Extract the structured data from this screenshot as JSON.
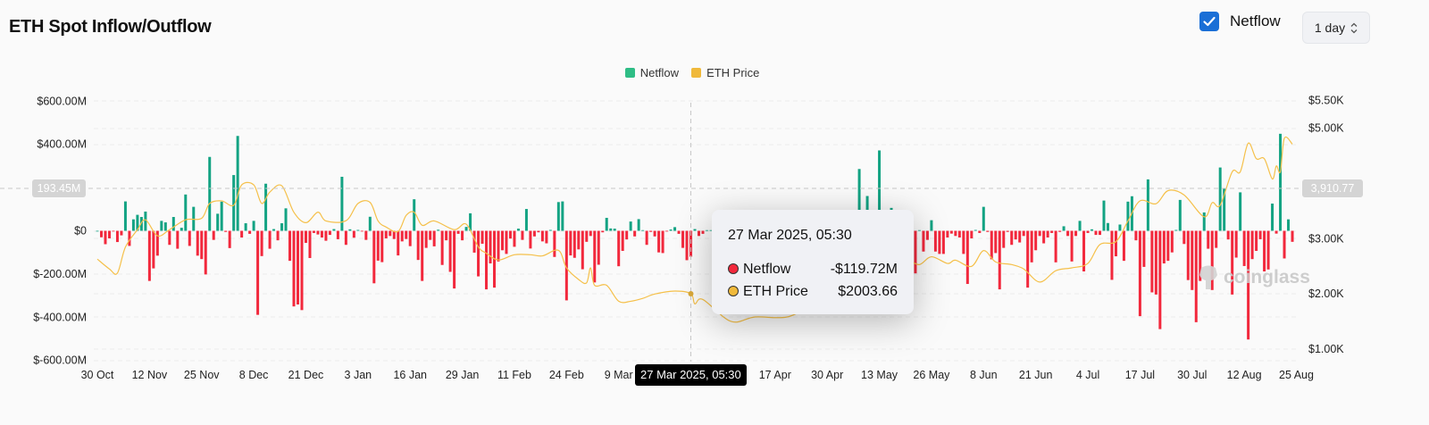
{
  "header": {
    "title": "ETH Spot Inflow/Outflow",
    "netflow_toggle_label": "Netflow",
    "netflow_toggle_checked": true,
    "interval_select": "1 day"
  },
  "colors": {
    "inflow": "#13a383",
    "outflow": "#f2283c",
    "price": "#f5c04a",
    "legend_netflow": "#2ebd85",
    "legend_price": "#f0b93a",
    "checkbox": "#1a6fd6"
  },
  "tooltip": {
    "date": "27 Mar 2025, 05:30",
    "rows": [
      {
        "label": "Netflow",
        "value": "-$119.72M",
        "dot": "#f2283c"
      },
      {
        "label": "ETH Price",
        "value": "$2003.66",
        "dot": "#f0b93a"
      }
    ]
  },
  "crosshair": {
    "x_label": "27 Mar 2025, 05:30",
    "left_label": "193.45M",
    "right_label": "3,910.77"
  },
  "watermark": "coinglass",
  "chart_data": {
    "type": "bar+line",
    "legend": [
      {
        "name": "Netflow"
      },
      {
        "name": "ETH Price"
      }
    ],
    "legend_position": "top-center",
    "grid": true,
    "x_ticks": [
      "30 Oct",
      "12 Nov",
      "25 Nov",
      "8 Dec",
      "21 Dec",
      "3 Jan",
      "16 Jan",
      "29 Jan",
      "11 Feb",
      "24 Feb",
      "9 Mar",
      "17 Apr",
      "30 Apr",
      "13 May",
      "26 May",
      "8 Jun",
      "21 Jun",
      "4 Jul",
      "17 Jul",
      "30 Jul",
      "12 Aug",
      "25 Aug"
    ],
    "x_tick_dates": [
      "2024-10-30",
      "2024-11-12",
      "2024-11-25",
      "2024-12-08",
      "2024-12-21",
      "2025-01-03",
      "2025-01-16",
      "2025-01-29",
      "2025-02-11",
      "2025-02-24",
      "2025-03-09",
      "2025-04-17",
      "2025-04-30",
      "2025-05-13",
      "2025-05-26",
      "2025-06-08",
      "2025-06-21",
      "2025-07-04",
      "2025-07-17",
      "2025-07-30",
      "2025-08-12",
      "2025-08-25"
    ],
    "y_left": {
      "ticks": [
        "$600.00M",
        "$400.00M",
        "$0",
        "$-200.00M",
        "$-400.00M",
        "$-600.00M"
      ],
      "tick_values": [
        600,
        400,
        0,
        -200,
        -400,
        -600
      ],
      "range": [
        -600,
        600
      ],
      "unit": "M USD"
    },
    "y_right": {
      "ticks": [
        "$5.50K",
        "$5.00K",
        "$3.00K",
        "$2.00K",
        "$1.00K"
      ],
      "tick_values": [
        5500,
        5000,
        3000,
        2000,
        1000
      ],
      "unit": "USD"
    },
    "netflow": {
      "name": "Netflow",
      "start": "2024-10-30",
      "interval": "1 day",
      "values": [
        0,
        -30,
        -62,
        -35,
        -3,
        -52,
        -21,
        136,
        -70,
        53,
        74,
        64,
        89,
        -232,
        -174,
        -115,
        46,
        39,
        -65,
        64,
        -83,
        14,
        168,
        -70,
        111,
        -115,
        -131,
        -202,
        342,
        -42,
        79,
        135,
        -5,
        -80,
        258,
        439,
        -31,
        35,
        -14,
        46,
        -389,
        -117,
        218,
        -83,
        8,
        -44,
        35,
        104,
        -139,
        -350,
        -341,
        -367,
        -56,
        -126,
        -10,
        -17,
        -31,
        -46,
        -19,
        8,
        -39,
        250,
        -65,
        7,
        -32,
        4,
        -3,
        -42,
        65,
        -243,
        -138,
        -145,
        -35,
        -24,
        -38,
        -114,
        -49,
        -38,
        -71,
        146,
        -135,
        -232,
        -79,
        -42,
        -72,
        5,
        -158,
        -44,
        -190,
        -267,
        -14,
        -44,
        18,
        81,
        -101,
        -211,
        -60,
        -271,
        -151,
        -263,
        -142,
        -90,
        -107,
        -36,
        -74,
        10,
        -42,
        101,
        -82,
        -26,
        -7,
        -49,
        -58,
        4,
        -121,
        133,
        136,
        -322,
        -114,
        -125,
        -86,
        -178,
        -51,
        -24,
        -239,
        -157,
        -7,
        60,
        11,
        10,
        -164,
        -93,
        -40,
        43,
        -26,
        54,
        3,
        -65,
        -5,
        -26,
        -100,
        -103,
        -3,
        6,
        17,
        -14,
        -79,
        -136,
        -119.72,
        8,
        -24,
        -14,
        3,
        3,
        -45,
        -80,
        -20,
        5,
        -60,
        -35,
        -110,
        -25,
        10,
        -50,
        -70,
        -15,
        30,
        -40,
        -90,
        -20,
        -55,
        15,
        -30,
        -65,
        -10,
        20,
        -45,
        -25,
        -85,
        -15,
        8,
        -35,
        -60,
        25,
        -20,
        -40,
        12,
        -30,
        -18,
        -50,
        286,
        -40,
        161,
        45,
        -30,
        372,
        -60,
        20,
        106,
        -25,
        15,
        -40,
        5,
        3,
        -197,
        3,
        -96,
        -42,
        49,
        -96,
        -107,
        -107,
        -31,
        -13,
        -24,
        -31,
        -107,
        -246,
        -35,
        4,
        -10,
        111,
        -5,
        -132,
        -103,
        -271,
        -79,
        -5,
        -65,
        -40,
        -54,
        -24,
        -263,
        -146,
        -90,
        -24,
        -58,
        -31,
        -10,
        -146,
        -5,
        21,
        -24,
        -142,
        -24,
        46,
        -188,
        -10,
        7,
        -19,
        -19,
        140,
        36,
        -227,
        -118,
        29,
        -139,
        135,
        160,
        -44,
        -395,
        -167,
        238,
        -285,
        -295,
        -455,
        -151,
        -139,
        -100,
        4,
        143,
        -61,
        -228,
        -274,
        -423,
        -232,
        85,
        -83,
        -274,
        -79,
        293,
        195,
        -40,
        -295,
        -124,
        178,
        -163,
        -503,
        -131,
        -93,
        -39,
        -188,
        -179,
        126,
        -13,
        449,
        -128,
        53,
        -51
      ]
    },
    "price": {
      "name": "ETH Price",
      "points": [
        [
          "2024-10-30",
          2630
        ],
        [
          "2024-11-02",
          2452
        ],
        [
          "2024-11-04",
          2377
        ],
        [
          "2024-11-06",
          2847
        ],
        [
          "2024-11-09",
          3163
        ],
        [
          "2024-11-11",
          3341
        ],
        [
          "2024-11-14",
          3052
        ],
        [
          "2024-11-17",
          3163
        ],
        [
          "2024-11-21",
          3341
        ],
        [
          "2024-11-25",
          3368
        ],
        [
          "2024-11-27",
          3637
        ],
        [
          "2024-11-30",
          3684
        ],
        [
          "2024-12-03",
          3605
        ],
        [
          "2024-12-05",
          3973
        ],
        [
          "2024-12-08",
          3973
        ],
        [
          "2024-12-10",
          3637
        ],
        [
          "2024-12-12",
          3842
        ],
        [
          "2024-12-15",
          3957
        ],
        [
          "2024-12-18",
          3479
        ],
        [
          "2024-12-21",
          3289
        ],
        [
          "2024-12-24",
          3479
        ],
        [
          "2024-12-26",
          3321
        ],
        [
          "2024-12-31",
          3325
        ],
        [
          "2025-01-03",
          3637
        ],
        [
          "2025-01-06",
          3657
        ],
        [
          "2025-01-08",
          3321
        ],
        [
          "2025-01-10",
          3210
        ],
        [
          "2025-01-13",
          3131
        ],
        [
          "2025-01-15",
          3420
        ],
        [
          "2025-01-17",
          3479
        ],
        [
          "2025-01-19",
          3242
        ],
        [
          "2025-01-22",
          3321
        ],
        [
          "2025-01-27",
          3163
        ],
        [
          "2025-01-30",
          3262
        ],
        [
          "2025-02-02",
          2851
        ],
        [
          "2025-02-04",
          2736
        ],
        [
          "2025-02-07",
          2614
        ],
        [
          "2025-02-11",
          2709
        ],
        [
          "2025-02-15",
          2709
        ],
        [
          "2025-02-18",
          2689
        ],
        [
          "2025-02-22",
          2788
        ],
        [
          "2025-02-24",
          2472
        ],
        [
          "2025-02-27",
          2262
        ],
        [
          "2025-03-01",
          2200
        ],
        [
          "2025-03-02",
          2472
        ],
        [
          "2025-03-03",
          2156
        ],
        [
          "2025-03-06",
          2156
        ],
        [
          "2025-03-09",
          1867
        ],
        [
          "2025-03-12",
          1867
        ],
        [
          "2025-03-15",
          1919
        ],
        [
          "2025-03-18",
          1998
        ],
        [
          "2025-03-23",
          2052
        ],
        [
          "2025-03-27",
          2003.66
        ],
        [
          "2025-03-28",
          1820
        ],
        [
          "2025-03-30",
          1899
        ],
        [
          "2025-04-06",
          1503
        ],
        [
          "2025-04-12",
          1583
        ],
        [
          "2025-04-20",
          1583
        ],
        [
          "2025-04-27",
          1800
        ],
        [
          "2025-05-03",
          1830
        ],
        [
          "2025-05-07",
          1820
        ],
        [
          "2025-05-10",
          2580
        ],
        [
          "2025-05-15",
          2600
        ],
        [
          "2025-05-20",
          2610
        ],
        [
          "2025-05-23",
          2531
        ],
        [
          "2025-05-26",
          2673
        ],
        [
          "2025-05-30",
          2551
        ],
        [
          "2025-06-01",
          2610
        ],
        [
          "2025-06-05",
          2499
        ],
        [
          "2025-06-08",
          2784
        ],
        [
          "2025-06-11",
          2579
        ],
        [
          "2025-06-15",
          2531
        ],
        [
          "2025-06-18",
          2452
        ],
        [
          "2025-06-22",
          2215
        ],
        [
          "2025-06-26",
          2420
        ],
        [
          "2025-06-30",
          2472
        ],
        [
          "2025-07-04",
          2551
        ],
        [
          "2025-07-07",
          2894
        ],
        [
          "2025-07-11",
          2946
        ],
        [
          "2025-07-14",
          3321
        ],
        [
          "2025-07-17",
          3684
        ],
        [
          "2025-07-21",
          3632
        ],
        [
          "2025-07-24",
          3869
        ],
        [
          "2025-07-28",
          3790
        ],
        [
          "2025-08-02",
          3395
        ],
        [
          "2025-08-04",
          3650
        ],
        [
          "2025-08-06",
          3605
        ],
        [
          "2025-08-09",
          4210
        ],
        [
          "2025-08-11",
          4210
        ],
        [
          "2025-08-13",
          4727
        ],
        [
          "2025-08-15",
          4447
        ],
        [
          "2025-08-17",
          4447
        ],
        [
          "2025-08-19",
          4079
        ],
        [
          "2025-08-20",
          4316
        ],
        [
          "2025-08-21",
          4210
        ],
        [
          "2025-08-22",
          4817
        ],
        [
          "2025-08-24",
          4711
        ]
      ]
    }
  }
}
